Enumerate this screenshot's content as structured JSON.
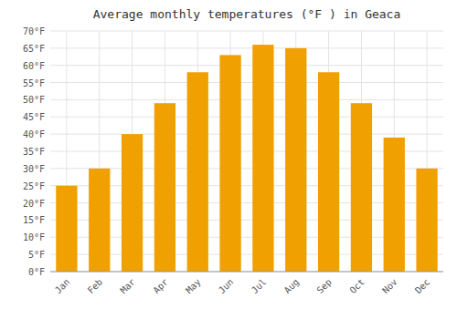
{
  "chart_data": {
    "type": "bar",
    "title": "Average monthly temperatures (°F ) in Geaca",
    "categories": [
      "Jan",
      "Feb",
      "Mar",
      "Apr",
      "May",
      "Jun",
      "Jul",
      "Aug",
      "Sep",
      "Oct",
      "Nov",
      "Dec"
    ],
    "values": [
      25,
      30,
      40,
      49,
      58,
      63,
      66,
      65,
      58,
      49,
      39,
      30
    ],
    "color": "#F0A000",
    "ylim": [
      0,
      70
    ],
    "yticks": [
      {
        "value": 0,
        "label": "0°F"
      },
      {
        "value": 5,
        "label": "5°F"
      },
      {
        "value": 10,
        "label": "10°F"
      },
      {
        "value": 15,
        "label": "15°F"
      },
      {
        "value": 20,
        "label": "20°F"
      },
      {
        "value": 25,
        "label": "25°F"
      },
      {
        "value": 30,
        "label": "30°F"
      },
      {
        "value": 35,
        "label": "35°F"
      },
      {
        "value": 40,
        "label": "40°F"
      },
      {
        "value": 45,
        "label": "45°F"
      },
      {
        "value": 50,
        "label": "50°F"
      },
      {
        "value": 55,
        "label": "55°F"
      },
      {
        "value": 60,
        "label": "60°F"
      },
      {
        "value": 65,
        "label": "65°F"
      },
      {
        "value": 70,
        "label": "70°F"
      }
    ],
    "grid": true
  }
}
